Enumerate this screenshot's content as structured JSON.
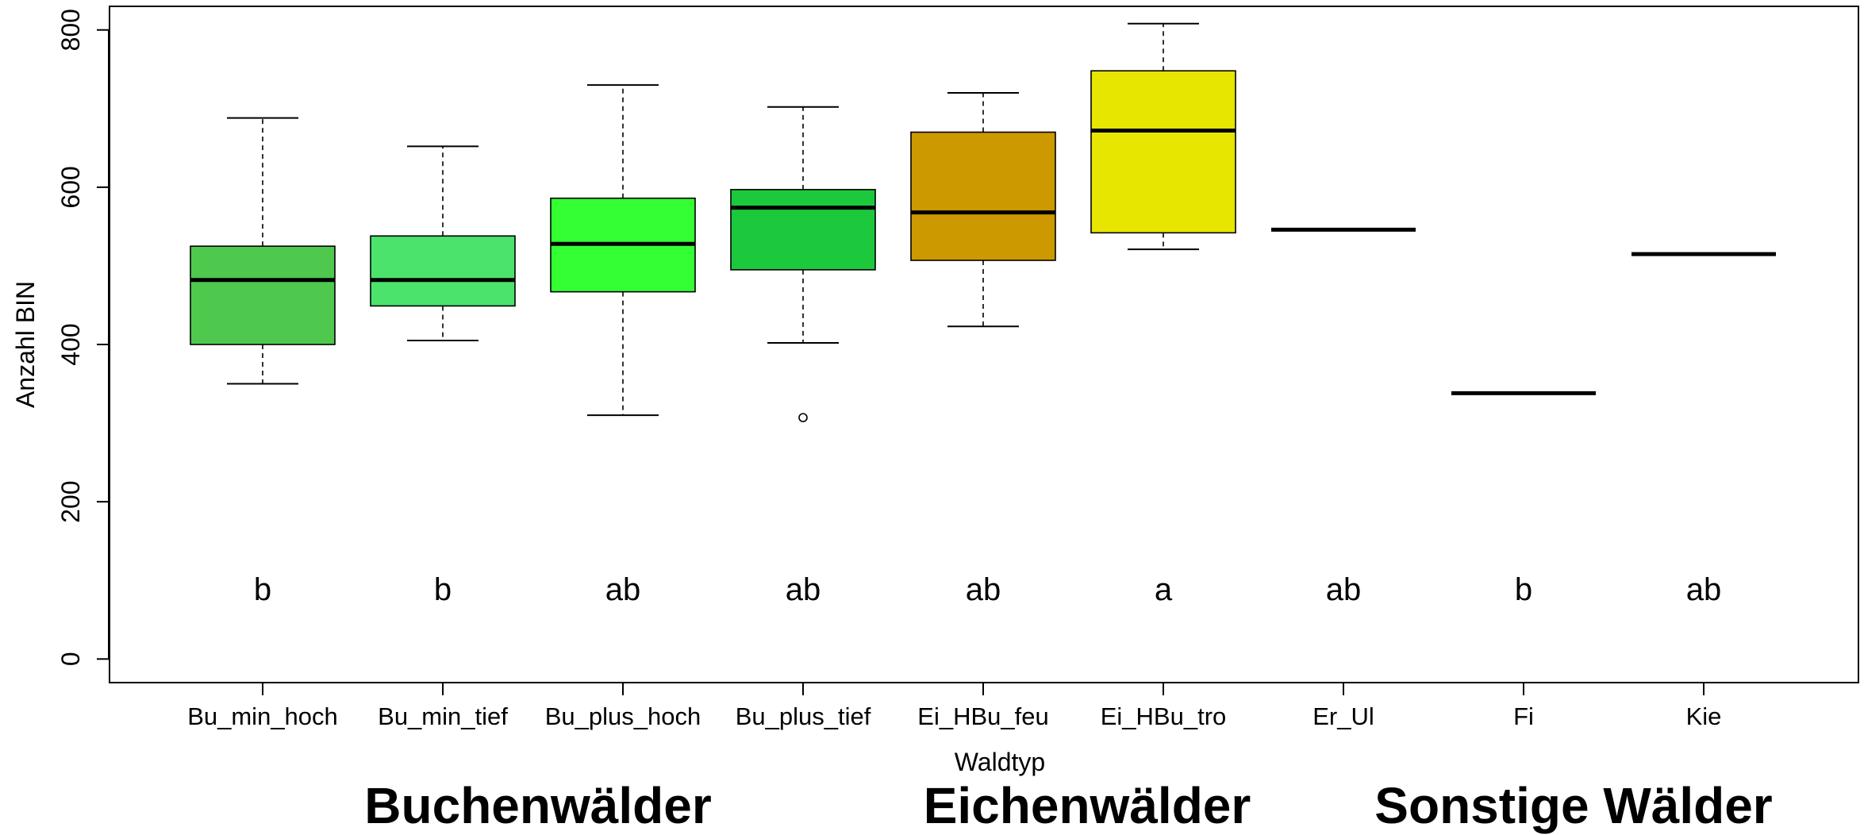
{
  "chart_data": {
    "type": "boxplot",
    "xlabel": "Waldtyp",
    "ylabel": "Anzahl BIN",
    "ylim": [
      -30,
      830
    ],
    "yticks": [
      0,
      200,
      400,
      600,
      800
    ],
    "grid": false,
    "categories": [
      "Bu_min_hoch",
      "Bu_min_tief",
      "Bu_plus_hoch",
      "Bu_plus_tief",
      "Ei_HBu_feu",
      "Ei_HBu_tro",
      "Er_Ul",
      "Fi",
      "Kie"
    ],
    "boxes": [
      {
        "category": "Bu_min_hoch",
        "whisker_low": 350,
        "q1": 400,
        "median": 482,
        "q3": 525,
        "whisker_high": 688,
        "outliers": [],
        "color": "#4ec94e",
        "letter": "b"
      },
      {
        "category": "Bu_min_tief",
        "whisker_low": 405,
        "q1": 449,
        "median": 482,
        "q3": 538,
        "whisker_high": 652,
        "outliers": [],
        "color": "#4be36b",
        "letter": "b"
      },
      {
        "category": "Bu_plus_hoch",
        "whisker_low": 310,
        "q1": 467,
        "median": 528,
        "q3": 586,
        "whisker_high": 730,
        "outliers": [],
        "color": "#33ff33",
        "letter": "ab"
      },
      {
        "category": "Bu_plus_tief",
        "whisker_low": 402,
        "q1": 495,
        "median": 574,
        "q3": 597,
        "whisker_high": 702,
        "outliers": [
          307
        ],
        "color": "#1cc93c",
        "letter": "ab"
      },
      {
        "category": "Ei_HBu_feu",
        "whisker_low": 423,
        "q1": 507,
        "median": 568,
        "q3": 670,
        "whisker_high": 720,
        "outliers": [],
        "color": "#cc9900",
        "letter": "ab"
      },
      {
        "category": "Ei_HBu_tro",
        "whisker_low": 521,
        "q1": 542,
        "median": 672,
        "q3": 748,
        "whisker_high": 808,
        "outliers": [],
        "color": "#e6e600",
        "letter": "a"
      },
      {
        "category": "Er_Ul",
        "whisker_low": 546,
        "q1": 546,
        "median": 546,
        "q3": 546,
        "whisker_high": 546,
        "outliers": [],
        "color": "#000000",
        "letter": "ab"
      },
      {
        "category": "Fi",
        "whisker_low": 338,
        "q1": 338,
        "median": 338,
        "q3": 338,
        "whisker_high": 338,
        "outliers": [],
        "color": "#000000",
        "letter": "b"
      },
      {
        "category": "Kie",
        "whisker_low": 515,
        "q1": 515,
        "median": 515,
        "q3": 515,
        "whisker_high": 515,
        "outliers": [],
        "color": "#000000",
        "letter": "ab"
      }
    ],
    "letter_y": 88
  },
  "groups": [
    {
      "label": "Buchenwälder"
    },
    {
      "label": "Eichenwälder"
    },
    {
      "label": "Sonstige Wälder"
    }
  ]
}
